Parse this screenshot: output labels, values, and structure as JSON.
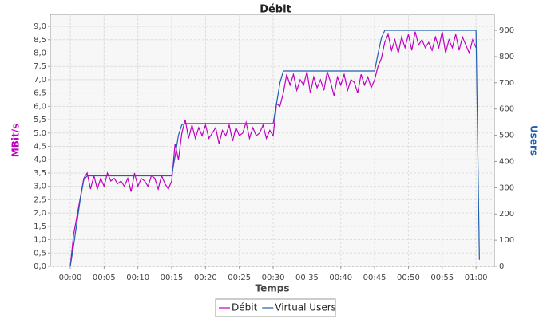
{
  "chart_data": {
    "type": "line",
    "title": "Débit",
    "x_label": "Temps",
    "y_label": "MBit/s",
    "y2_label": "Users",
    "x": [
      0,
      0.5,
      1,
      1.5,
      2,
      2.5,
      3,
      3.5,
      4,
      4.5,
      5,
      5.5,
      6,
      6.5,
      7,
      7.5,
      8,
      8.5,
      9,
      9.5,
      10,
      10.5,
      11,
      11.5,
      12,
      12.5,
      13,
      13.5,
      14,
      14.5,
      15,
      15.5,
      16,
      16.5,
      17,
      17.5,
      18,
      18.5,
      19,
      19.5,
      20,
      20.5,
      21,
      21.5,
      22,
      22.5,
      23,
      23.5,
      24,
      24.5,
      25,
      25.5,
      26,
      26.5,
      27,
      27.5,
      28,
      28.5,
      29,
      29.5,
      30,
      30.5,
      31,
      31.5,
      32,
      32.5,
      33,
      33.5,
      34,
      34.5,
      35,
      35.5,
      36,
      36.5,
      37,
      37.5,
      38,
      38.5,
      39,
      39.5,
      40,
      40.5,
      41,
      41.5,
      42,
      42.5,
      43,
      43.5,
      44,
      44.5,
      45,
      45.5,
      46,
      46.5,
      47,
      47.5,
      48,
      48.5,
      49,
      49.5,
      50,
      50.5,
      51,
      51.5,
      52,
      52.5,
      53,
      53.5,
      54,
      54.5,
      55,
      55.5,
      56,
      56.5,
      57,
      57.5,
      58,
      58.5,
      59,
      59.5,
      60,
      60.5
    ],
    "series": [
      {
        "name": "Débit",
        "color": "#c000c0",
        "values": [
          0,
          1.2,
          1.9,
          2.6,
          3.3,
          3.5,
          2.9,
          3.4,
          2.9,
          3.3,
          3.0,
          3.5,
          3.2,
          3.3,
          3.1,
          3.2,
          3.0,
          3.3,
          2.8,
          3.5,
          3.0,
          3.3,
          3.2,
          3.0,
          3.4,
          3.3,
          2.9,
          3.4,
          3.1,
          2.9,
          3.2,
          4.6,
          4.0,
          5.0,
          5.5,
          4.8,
          5.3,
          4.8,
          5.2,
          4.9,
          5.3,
          4.8,
          5.0,
          5.2,
          4.6,
          5.1,
          4.9,
          5.3,
          4.7,
          5.2,
          4.9,
          5.0,
          5.4,
          4.8,
          5.2,
          4.9,
          5.0,
          5.3,
          4.8,
          5.1,
          4.9,
          6.1,
          6.0,
          6.5,
          7.2,
          6.8,
          7.2,
          6.6,
          7.0,
          6.8,
          7.3,
          6.5,
          7.1,
          6.7,
          7.0,
          6.6,
          7.3,
          6.9,
          6.4,
          7.1,
          6.8,
          7.2,
          6.6,
          7.0,
          6.9,
          6.5,
          7.2,
          6.8,
          7.1,
          6.7,
          7.0,
          7.5,
          7.8,
          8.4,
          8.7,
          8.1,
          8.5,
          8.0,
          8.6,
          8.2,
          8.7,
          8.1,
          8.8,
          8.3,
          8.5,
          8.2,
          8.4,
          8.1,
          8.6,
          8.2,
          8.8,
          8.0,
          8.5,
          8.2,
          8.7,
          8.1,
          8.6,
          8.3,
          8.0,
          8.5,
          8.2,
          null
        ]
      },
      {
        "name": "Virtual Users",
        "color": "#1f5fb0",
        "axis": "y2",
        "values": [
          0,
          80,
          170,
          260,
          330,
          345,
          345,
          345,
          345,
          345,
          345,
          345,
          345,
          345,
          345,
          345,
          345,
          345,
          345,
          345,
          345,
          345,
          345,
          345,
          345,
          345,
          345,
          345,
          345,
          345,
          345,
          420,
          500,
          540,
          545,
          545,
          545,
          545,
          545,
          545,
          545,
          545,
          545,
          545,
          545,
          545,
          545,
          545,
          545,
          545,
          545,
          545,
          545,
          545,
          545,
          545,
          545,
          545,
          545,
          545,
          545,
          620,
          700,
          745,
          745,
          745,
          745,
          745,
          745,
          745,
          745,
          745,
          745,
          745,
          745,
          745,
          745,
          745,
          745,
          745,
          745,
          745,
          745,
          745,
          745,
          745,
          745,
          745,
          745,
          745,
          745,
          810,
          870,
          900,
          900,
          900,
          900,
          900,
          900,
          900,
          900,
          900,
          900,
          900,
          900,
          900,
          900,
          900,
          900,
          900,
          900,
          900,
          900,
          900,
          900,
          900,
          900,
          900,
          900,
          900,
          900,
          25
        ]
      }
    ],
    "xlim": [
      -2.95,
      62.7
    ],
    "xticks": [
      {
        "value": 0,
        "label": "00:00"
      },
      {
        "value": 5,
        "label": "00:05"
      },
      {
        "value": 10,
        "label": "00:10"
      },
      {
        "value": 15,
        "label": "00:15"
      },
      {
        "value": 20,
        "label": "00:20"
      },
      {
        "value": 25,
        "label": "00:25"
      },
      {
        "value": 30,
        "label": "00:30"
      },
      {
        "value": 35,
        "label": "00:35"
      },
      {
        "value": 40,
        "label": "00:40"
      },
      {
        "value": 45,
        "label": "00:45"
      },
      {
        "value": 50,
        "label": "00:50"
      },
      {
        "value": 55,
        "label": "00:55"
      },
      {
        "value": 60,
        "label": "01:00"
      }
    ],
    "ylim": [
      0,
      9.45
    ],
    "yticks": [
      {
        "value": 0,
        "label": "0,0"
      },
      {
        "value": 0.5,
        "label": "0,5"
      },
      {
        "value": 1,
        "label": "1,0"
      },
      {
        "value": 1.5,
        "label": "1,5"
      },
      {
        "value": 2,
        "label": "2,0"
      },
      {
        "value": 2.5,
        "label": "2,5"
      },
      {
        "value": 3,
        "label": "3,0"
      },
      {
        "value": 3.5,
        "label": "3,5"
      },
      {
        "value": 4,
        "label": "4,0"
      },
      {
        "value": 4.5,
        "label": "4,5"
      },
      {
        "value": 5,
        "label": "5,0"
      },
      {
        "value": 5.5,
        "label": "5,5"
      },
      {
        "value": 6,
        "label": "6,0"
      },
      {
        "value": 6.5,
        "label": "6,5"
      },
      {
        "value": 7,
        "label": "7,0"
      },
      {
        "value": 7.5,
        "label": "7,5"
      },
      {
        "value": 8,
        "label": "8,0"
      },
      {
        "value": 8.5,
        "label": "8,5"
      },
      {
        "value": 9,
        "label": "9,0"
      }
    ],
    "y2lim": [
      0,
      961
    ],
    "y2ticks": [
      0,
      100,
      200,
      300,
      400,
      500,
      600,
      700,
      800,
      900
    ],
    "grid": true,
    "legend": "bottom"
  }
}
